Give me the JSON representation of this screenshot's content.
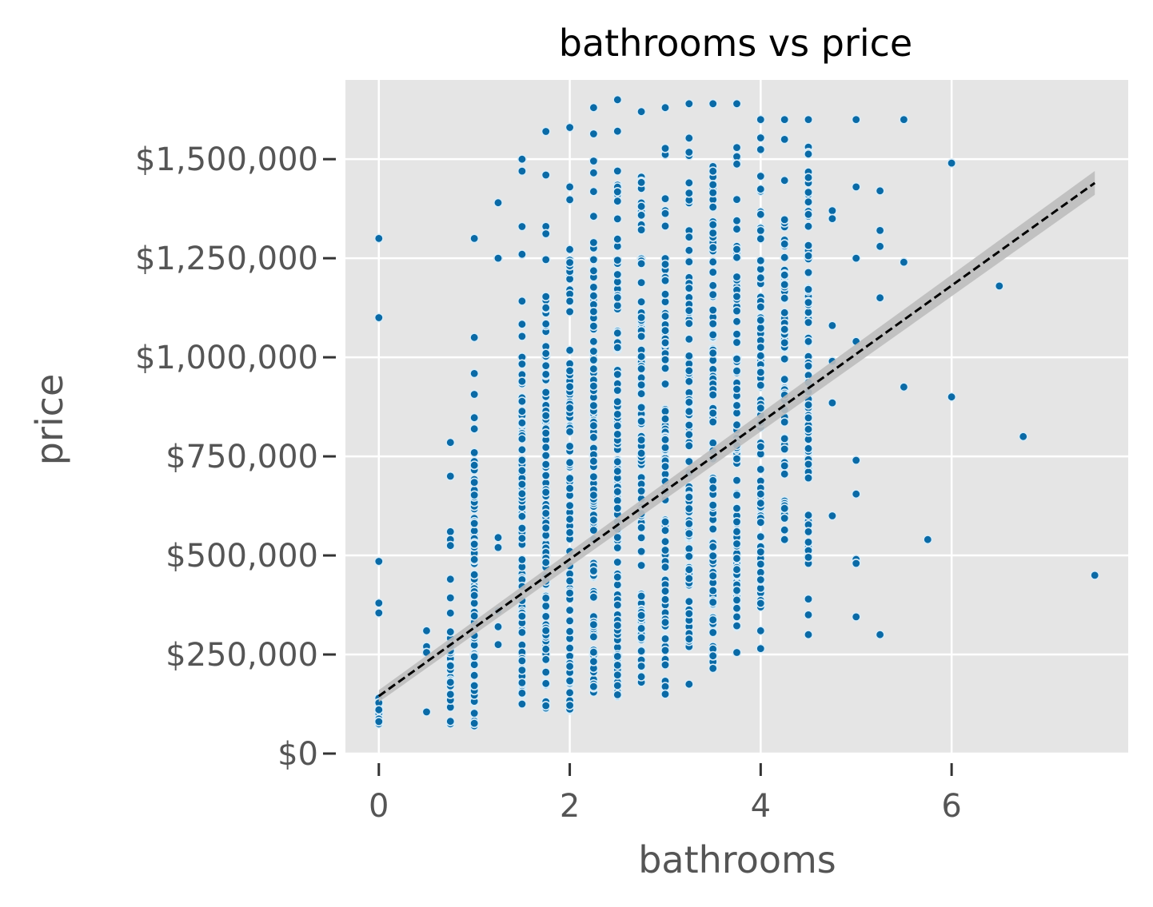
{
  "colors": {
    "panel": "#e5e5e5",
    "grid": "#ffffff",
    "point_fill": "#0a6aa6",
    "point_edge": "#d8ecf8",
    "fit_line": "#000000",
    "ci_band": "#bdbdbd",
    "tick_text": "#555555"
  },
  "chart_data": {
    "type": "scatter",
    "title": "bathrooms vs price",
    "xlabel": "bathrooms",
    "ylabel": "price",
    "xlim": [
      -0.35,
      7.85
    ],
    "ylim": [
      0,
      1700000
    ],
    "grid": true,
    "x_ticks": [
      0,
      2,
      4,
      6
    ],
    "x_tick_labels": [
      "0",
      "2",
      "4",
      "6"
    ],
    "y_ticks": [
      0,
      250000,
      500000,
      750000,
      1000000,
      1250000,
      1500000
    ],
    "y_tick_labels": [
      "$0",
      "$250,000",
      "$500,000",
      "$750,000",
      "$1,000,000",
      "$1,250,000",
      "$1,500,000"
    ],
    "columns": [
      {
        "x": 0,
        "min": 75000,
        "max": 140000
      },
      {
        "x": 0.75,
        "min": 75000,
        "max": 440000
      },
      {
        "x": 1,
        "min": 70000,
        "max": 1050000
      },
      {
        "x": 1.5,
        "min": 125000,
        "max": 1260000
      },
      {
        "x": 1.75,
        "min": 115000,
        "max": 1460000
      },
      {
        "x": 2,
        "min": 110000,
        "max": 1430000
      },
      {
        "x": 2.25,
        "min": 155000,
        "max": 1630000
      },
      {
        "x": 2.5,
        "min": 145000,
        "max": 1650000
      },
      {
        "x": 2.75,
        "min": 180000,
        "max": 1620000
      },
      {
        "x": 3,
        "min": 165000,
        "max": 1630000
      },
      {
        "x": 3.25,
        "min": 270000,
        "max": 1640000
      },
      {
        "x": 3.5,
        "min": 230000,
        "max": 1640000
      },
      {
        "x": 3.75,
        "min": 320000,
        "max": 1640000
      },
      {
        "x": 4,
        "min": 370000,
        "max": 1600000
      },
      {
        "x": 4.25,
        "min": 540000,
        "max": 1550000
      },
      {
        "x": 4.5,
        "min": 480000,
        "max": 1600000
      }
    ],
    "points": [
      {
        "x": 0,
        "y": 1300000
      },
      {
        "x": 0,
        "y": 1100000
      },
      {
        "x": 0,
        "y": 485000
      },
      {
        "x": 0,
        "y": 380000
      },
      {
        "x": 0,
        "y": 355000
      },
      {
        "x": 0.5,
        "y": 310000
      },
      {
        "x": 0.5,
        "y": 270000
      },
      {
        "x": 0.5,
        "y": 255000
      },
      {
        "x": 0.5,
        "y": 105000
      },
      {
        "x": 0.75,
        "y": 785000
      },
      {
        "x": 0.75,
        "y": 700000
      },
      {
        "x": 0.75,
        "y": 560000
      },
      {
        "x": 0.75,
        "y": 540000
      },
      {
        "x": 0.75,
        "y": 525000
      },
      {
        "x": 1.25,
        "y": 1390000
      },
      {
        "x": 1.25,
        "y": 1250000
      },
      {
        "x": 1.25,
        "y": 545000
      },
      {
        "x": 1.25,
        "y": 520000
      },
      {
        "x": 1.25,
        "y": 360000
      },
      {
        "x": 1.25,
        "y": 320000
      },
      {
        "x": 1.25,
        "y": 275000
      },
      {
        "x": 1,
        "y": 1300000
      },
      {
        "x": 1.5,
        "y": 1500000
      },
      {
        "x": 1.5,
        "y": 1470000
      },
      {
        "x": 1.5,
        "y": 1330000
      },
      {
        "x": 1.75,
        "y": 1570000
      },
      {
        "x": 2,
        "y": 1580000
      },
      {
        "x": 4.25,
        "y": 1600000
      },
      {
        "x": 4.5,
        "y": 390000
      },
      {
        "x": 4.5,
        "y": 350000
      },
      {
        "x": 4.5,
        "y": 300000
      },
      {
        "x": 4,
        "y": 310000
      },
      {
        "x": 4,
        "y": 265000
      },
      {
        "x": 3.75,
        "y": 255000
      },
      {
        "x": 3.75,
        "y": 345000
      },
      {
        "x": 3.25,
        "y": 175000
      },
      {
        "x": 3,
        "y": 150000
      },
      {
        "x": 3.5,
        "y": 215000
      },
      {
        "x": 4.75,
        "y": 1370000
      },
      {
        "x": 4.75,
        "y": 1350000
      },
      {
        "x": 4.75,
        "y": 1080000
      },
      {
        "x": 4.75,
        "y": 990000
      },
      {
        "x": 4.75,
        "y": 885000
      },
      {
        "x": 4.75,
        "y": 600000
      },
      {
        "x": 5,
        "y": 1600000
      },
      {
        "x": 5,
        "y": 1430000
      },
      {
        "x": 5,
        "y": 1250000
      },
      {
        "x": 5,
        "y": 1040000
      },
      {
        "x": 5,
        "y": 740000
      },
      {
        "x": 5,
        "y": 655000
      },
      {
        "x": 5,
        "y": 490000
      },
      {
        "x": 5,
        "y": 480000
      },
      {
        "x": 5,
        "y": 345000
      },
      {
        "x": 5.25,
        "y": 1420000
      },
      {
        "x": 5.25,
        "y": 1320000
      },
      {
        "x": 5.25,
        "y": 1280000
      },
      {
        "x": 5.25,
        "y": 1150000
      },
      {
        "x": 5.25,
        "y": 300000
      },
      {
        "x": 5.5,
        "y": 1600000
      },
      {
        "x": 5.5,
        "y": 1240000
      },
      {
        "x": 5.5,
        "y": 925000
      },
      {
        "x": 5.75,
        "y": 540000
      },
      {
        "x": 6,
        "y": 1490000
      },
      {
        "x": 6,
        "y": 900000
      },
      {
        "x": 6.5,
        "y": 1180000
      },
      {
        "x": 6.75,
        "y": 800000
      },
      {
        "x": 7.5,
        "y": 450000
      }
    ],
    "regression": {
      "x": [
        0,
        7.5
      ],
      "y": [
        145000,
        1440000
      ],
      "ci_halfwidth_at_end": 30000
    }
  }
}
